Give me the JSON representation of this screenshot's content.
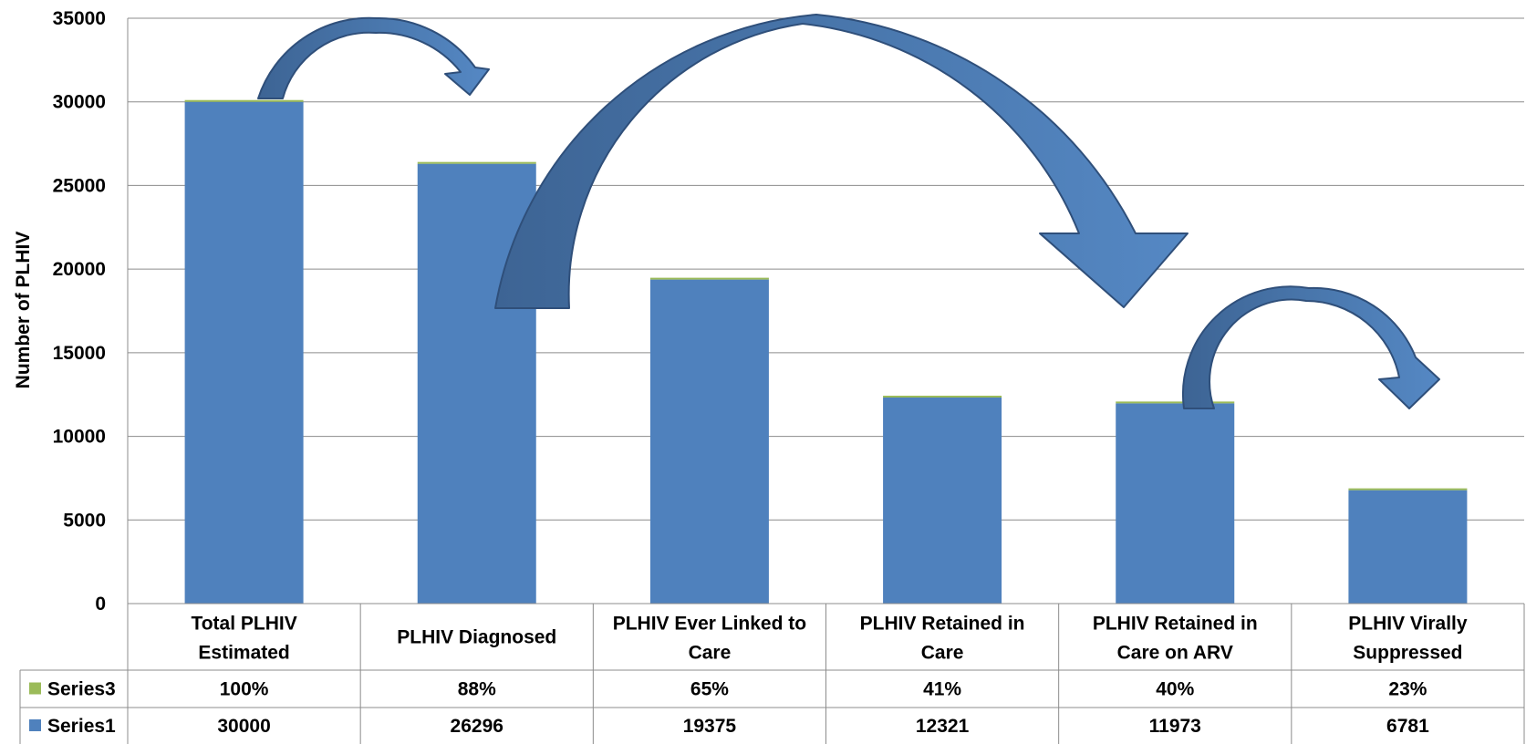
{
  "chart_data": {
    "type": "bar",
    "title": "",
    "xlabel": "",
    "ylabel": "Number of PLHIV",
    "ylim": [
      0,
      35000
    ],
    "yticks": [
      0,
      5000,
      10000,
      15000,
      20000,
      25000,
      30000,
      35000
    ],
    "grid": true,
    "categories": [
      [
        "Total PLHIV",
        "Estimated"
      ],
      [
        "PLHIV Diagnosed"
      ],
      [
        "PLHIV Ever Linked to",
        "Care"
      ],
      [
        "PLHIV Retained in",
        "Care"
      ],
      [
        "PLHIV Retained in",
        "Care on ARV"
      ],
      [
        "PLHIV Virally",
        "Suppressed"
      ]
    ],
    "series": [
      {
        "name": "Series3",
        "color": "#9BBB59",
        "values": [
          "100%",
          "88%",
          "65%",
          "41%",
          "40%",
          "23%"
        ],
        "plotted_values": [
          1.0,
          0.88,
          0.65,
          0.41,
          0.4,
          0.23
        ]
      },
      {
        "name": "Series1",
        "color": "#4F81BD",
        "values": [
          30000,
          26296,
          19375,
          12321,
          11973,
          6781
        ]
      }
    ],
    "data_table": true,
    "annotations": [
      "curved-arrow",
      "curved-arrow",
      "curved-arrow"
    ]
  }
}
